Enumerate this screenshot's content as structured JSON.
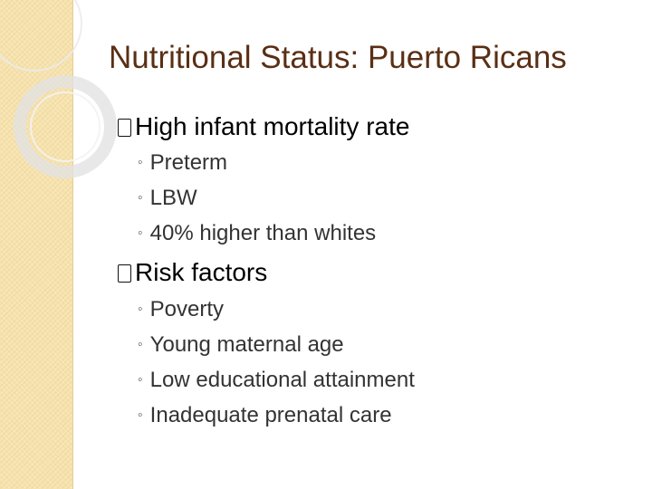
{
  "title": "Nutritional Status: Puerto Ricans",
  "sections": [
    {
      "label": "High infant mortality rate",
      "bullet_icon": "box-bullet-icon",
      "items": [
        "Preterm",
        "LBW",
        "40% higher than whites"
      ]
    },
    {
      "label": "Risk factors",
      "bullet_icon": "box-bullet-icon",
      "items": [
        "Poverty",
        "Young maternal age",
        "Low educational attainment",
        "Inadequate prenatal care"
      ]
    }
  ],
  "colors": {
    "title": "#5a2f14",
    "sidebar": "#f6e2ad",
    "ring": "#e6e6e6"
  }
}
